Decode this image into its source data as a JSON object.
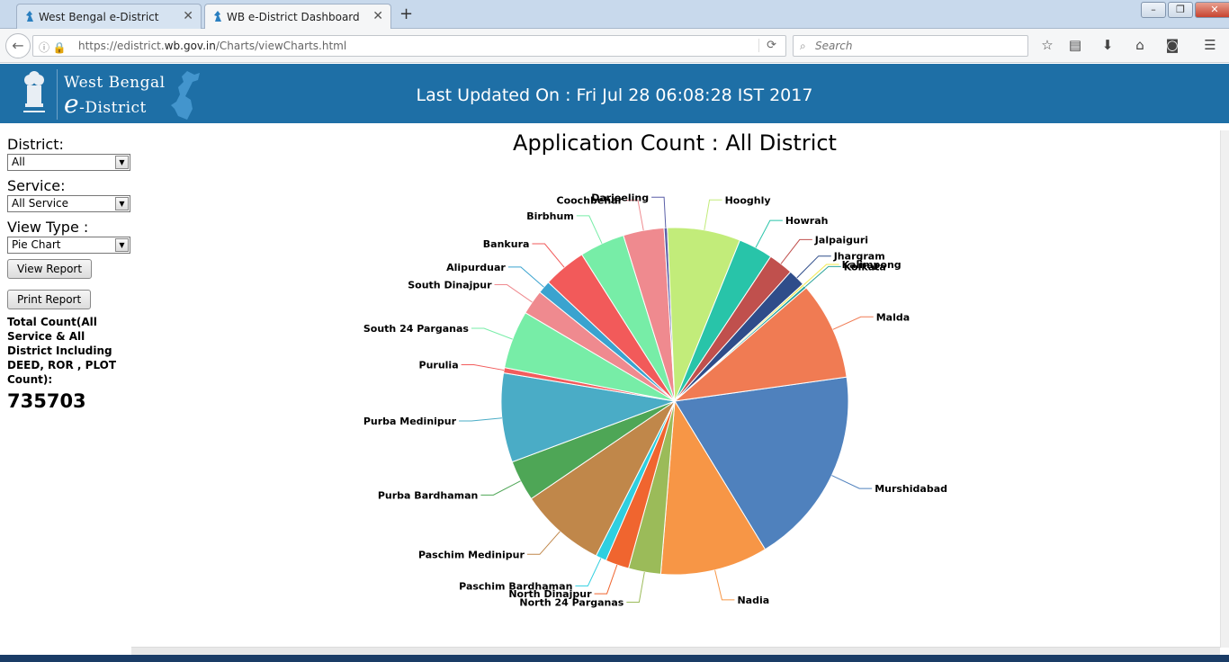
{
  "browser": {
    "tabs": [
      {
        "label": "West Bengal e-District",
        "active": false
      },
      {
        "label": "WB e-District Dashboard",
        "active": true
      }
    ],
    "new_tab": "+",
    "url_prefix": "https://edistrict.",
    "url_domain": "wb.gov.in",
    "url_path": "/Charts/viewCharts.html",
    "search_placeholder": "Search",
    "window_controls": {
      "minimize": "–",
      "restore": "❐",
      "close": "✕"
    }
  },
  "header": {
    "logo_line1": "West Bengal",
    "logo_e": "e",
    "logo_line2_rest": "-District",
    "last_updated": "Last Updated On : Fri Jul 28 06:08:28 IST 2017"
  },
  "filters": {
    "district_label": "District:",
    "district_value": "All",
    "service_label": "Service:",
    "service_value": "All Service",
    "view_type_label": "View Type :",
    "view_type_value": "Pie Chart",
    "view_report": "View Report",
    "print_report": "Print Report"
  },
  "totals": {
    "label": "Total Count(All Service & All District Including DEED, ROR , PLOT Count):",
    "value": "735703"
  },
  "chart_data": {
    "type": "pie",
    "title": "Application Count : All District",
    "slices": [
      {
        "label": "Murshidabad",
        "value": 18.5,
        "color": "#4f81bd"
      },
      {
        "label": "Nadia",
        "value": 10.0,
        "color": "#f79646"
      },
      {
        "label": "North 24 Parganas",
        "value": 3.0,
        "color": "#9bbb59"
      },
      {
        "label": "North Dinajpur",
        "value": 2.2,
        "color": "#f0652f"
      },
      {
        "label": "Paschim Bardhaman",
        "value": 1.0,
        "color": "#2ecfe0"
      },
      {
        "label": "Paschim Medinipur",
        "value": 8.0,
        "color": "#c0874a"
      },
      {
        "label": "Purba Bardhaman",
        "value": 3.8,
        "color": "#4ea656"
      },
      {
        "label": "Purba Medinipur",
        "value": 8.3,
        "color": "#4aacc6"
      },
      {
        "label": "Purulia",
        "value": 0.5,
        "color": "#f25c5c"
      },
      {
        "label": "South 24 Parganas",
        "value": 5.4,
        "color": "#77eda7"
      },
      {
        "label": "South Dinajpur",
        "value": 2.3,
        "color": "#ef8a8f"
      },
      {
        "label": "Alipurduar",
        "value": 1.2,
        "color": "#3aa3cf"
      },
      {
        "label": "Bankura",
        "value": 4.0,
        "color": "#f25a5a"
      },
      {
        "label": "Birbhum",
        "value": 4.2,
        "color": "#77eda7"
      },
      {
        "label": "Coochbehar",
        "value": 3.8,
        "color": "#ef8a8f"
      },
      {
        "label": "Darjeeling",
        "value": 0.3,
        "color": "#5a5fa7"
      },
      {
        "label": "Hooghly",
        "value": 6.8,
        "color": "#c2ec7a"
      },
      {
        "label": "Howrah",
        "value": 3.2,
        "color": "#28c4a9"
      },
      {
        "label": "Jalpaiguri",
        "value": 2.3,
        "color": "#c0504d"
      },
      {
        "label": "Jhargram",
        "value": 1.6,
        "color": "#2f4d8a"
      },
      {
        "label": "Kalimpong",
        "value": 0.2,
        "color": "#f2e94e"
      },
      {
        "label": "Kolkata",
        "value": 0.25,
        "color": "#2aa39a"
      },
      {
        "label": "Malda",
        "value": 9.1,
        "color": "#f07b53"
      }
    ]
  }
}
